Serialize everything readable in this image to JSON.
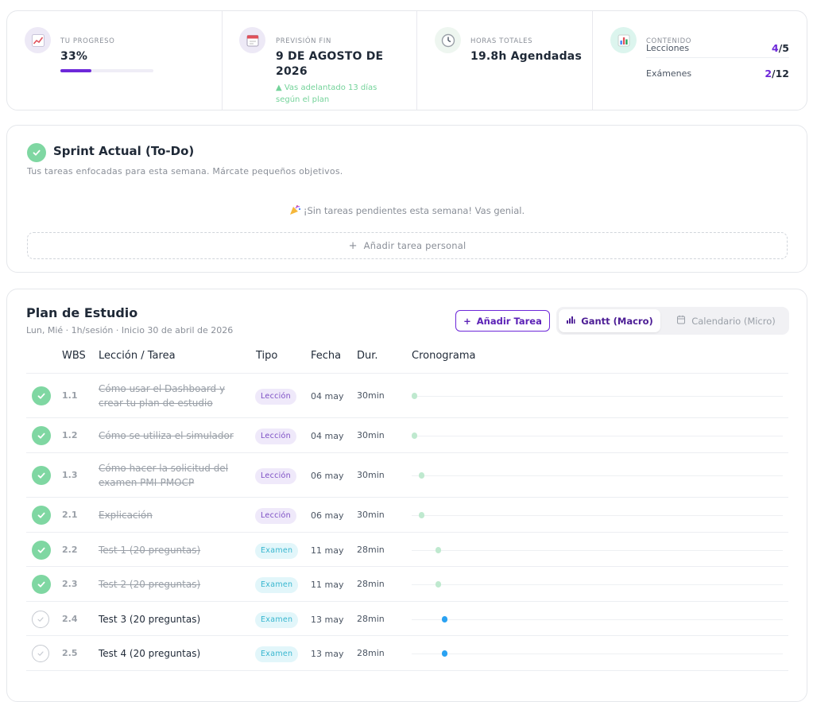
{
  "colors": {
    "accent": "#6d28d9",
    "success": "#7fd7a2",
    "exam": "#38b6cf",
    "scheduled": "#2aa2f2"
  },
  "stats": {
    "progress": {
      "label": "TU PROGRESO",
      "value": "33%",
      "fraction": 0.33,
      "icon": "chart-trend-icon"
    },
    "forecast": {
      "label": "PREVISIÓN FIN",
      "value": "9 DE AGOSTO DE 2026",
      "note": "▲ Vas adelantado 13 días según el plan",
      "icon": "calendar-icon"
    },
    "hours": {
      "label": "HORAS TOTALES",
      "value": "19.8h Agendadas",
      "icon": "clock-icon"
    },
    "content": {
      "label": "CONTENIDO",
      "icon": "bar-chart-icon",
      "lessons": {
        "label": "Lecciones",
        "done": "4",
        "total": "/5"
      },
      "exams": {
        "label": "Exámenes",
        "done": "2",
        "total": "/12"
      }
    }
  },
  "sprint": {
    "title": "Sprint Actual (To-Do)",
    "subtitle": "Tus tareas enfocadas para esta semana. Márcate pequeños objetivos.",
    "empty_message": "¡Sin tareas pendientes esta semana! Vas genial.",
    "add_button": "Añadir tarea personal"
  },
  "plan": {
    "title": "Plan de Estudio",
    "subtitle": "Lun, Mié · 1h/sesión · Inicio 30 de abril de 2026",
    "add_task": "Añadir Tarea",
    "tabs": {
      "gantt": "Gantt (Macro)",
      "calendar": "Calendario (Micro)"
    },
    "columns": {
      "wbs": "WBS",
      "task": "Lección / Tarea",
      "type": "Tipo",
      "date": "Fecha",
      "duration": "Dur.",
      "timeline": "Cronograma"
    },
    "rows": [
      {
        "wbs": "1.1",
        "name": "Cómo usar el Dashboard y crear tu plan de estudio",
        "type": "Lección",
        "date": "04 may",
        "duration": "30min",
        "done": true
      },
      {
        "wbs": "1.2",
        "name": "Cómo se utiliza el simulador",
        "type": "Lección",
        "date": "04 may",
        "duration": "30min",
        "done": true
      },
      {
        "wbs": "1.3",
        "name": "Cómo hacer la solicitud del examen PMI-PMOCP",
        "type": "Lección",
        "date": "06 may",
        "duration": "30min",
        "done": true
      },
      {
        "wbs": "2.1",
        "name": "Explicación",
        "type": "Lección",
        "date": "06 may",
        "duration": "30min",
        "done": true
      },
      {
        "wbs": "2.2",
        "name": "Test 1 (20 preguntas)",
        "type": "Examen",
        "date": "11 may",
        "duration": "28min",
        "done": true
      },
      {
        "wbs": "2.3",
        "name": "Test 2 (20 preguntas)",
        "type": "Examen",
        "date": "11 may",
        "duration": "28min",
        "done": true
      },
      {
        "wbs": "2.4",
        "name": "Test 3 (20 preguntas)",
        "type": "Examen",
        "date": "13 may",
        "duration": "28min",
        "done": false
      },
      {
        "wbs": "2.5",
        "name": "Test 4 (20 preguntas)",
        "type": "Examen",
        "date": "13 may",
        "duration": "28min",
        "done": false
      }
    ]
  }
}
